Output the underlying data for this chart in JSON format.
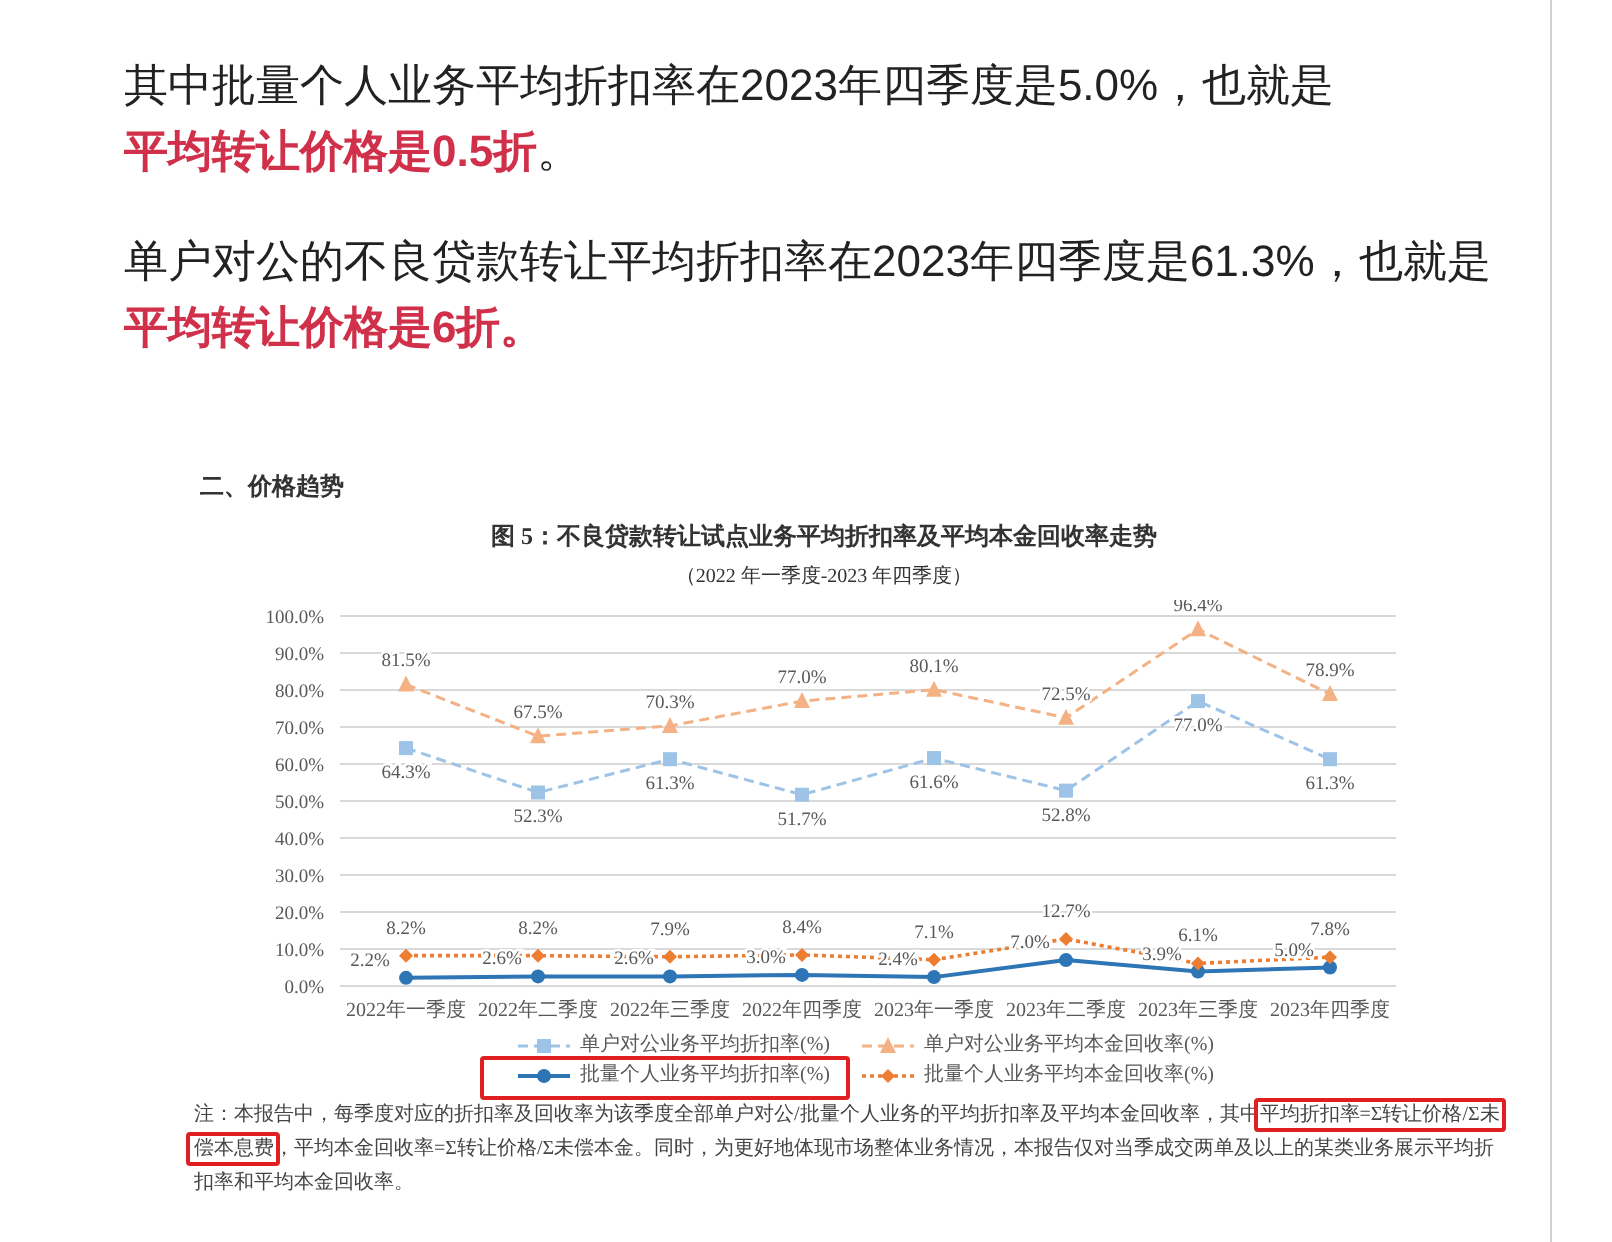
{
  "chart_data": {
    "type": "line",
    "title": "图 5：不良贷款转让试点业务平均折扣率及平均本金回收率走势",
    "subtitle": "（2022 年一季度-2023 年四季度）",
    "annotations": [
      "其中批量个人业务平均折扣率在2023年四季度是5.0%，也就是",
      "平均转让价格是0.5折",
      "。",
      "单户对公的不良贷款转让平均折扣率在2023年四季度是61.3%，也就是",
      "平均转让价格是6折。",
      "二、价格趋势",
      "注：本报告中，每季度对应的折扣率及回收率为该季度全部单户对公/批量个人业务的平均折扣率及平均本金回收率，其中",
      "平均折扣率=Σ转让价格/Σ未",
      "偿本息费",
      "，平均本金回收率=Σ转让价格/Σ未偿本金。同时，为更好地体现市场整体业务情况，本报告仅对当季成交两单及以上的某类业务展示平均折",
      "扣率和平均本金回收率。"
    ],
    "categories": [
      "2022年一季度",
      "2022年二季度",
      "2022年三季度",
      "2022年四季度",
      "2023年一季度",
      "2023年二季度",
      "2023年三季度",
      "2023年四季度"
    ],
    "series": [
      {
        "name": "单户对公业务平均折扣率(%)",
        "color": "#9dc3e6",
        "marker": "square",
        "line_style": "dashed",
        "values": [
          64.3,
          52.3,
          61.3,
          51.7,
          61.6,
          52.8,
          77.0,
          61.3
        ],
        "value_labels": [
          "64.3%",
          "52.3%",
          "61.3%",
          "51.7%",
          "61.6%",
          "52.8%",
          "77.0%",
          "61.3%"
        ]
      },
      {
        "name": "单户对公业务平均本金回收率(%)",
        "color": "#f4b183",
        "marker": "triangle",
        "line_style": "dashed",
        "values": [
          81.5,
          67.5,
          70.3,
          77.0,
          80.1,
          72.5,
          96.4,
          78.9
        ],
        "value_labels": [
          "81.5%",
          "67.5%",
          "70.3%",
          "77.0%",
          "80.1%",
          "72.5%",
          "96.4%",
          "78.9%"
        ]
      },
      {
        "name": "批量个人业务平均折扣率(%)",
        "color": "#2e75b6",
        "marker": "circle",
        "line_style": "solid",
        "values": [
          2.2,
          2.6,
          2.6,
          3.0,
          2.4,
          7.0,
          3.9,
          5.0
        ],
        "value_labels": [
          "2.2%",
          "2.6%",
          "2.6%",
          "3.0%",
          "2.4%",
          "7.0%",
          "3.9%",
          "5.0%"
        ]
      },
      {
        "name": "批量个人业务平均本金回收率(%)",
        "color": "#ed7d31",
        "marker": "diamond",
        "line_style": "dotted",
        "values": [
          8.2,
          8.2,
          7.9,
          8.4,
          7.1,
          12.7,
          6.1,
          7.8
        ],
        "value_labels": [
          "8.2%",
          "8.2%",
          "7.9%",
          "8.4%",
          "7.1%",
          "12.7%",
          "6.1%",
          "7.8%"
        ]
      }
    ],
    "ylim": [
      0,
      100
    ],
    "yticks": [
      {
        "value": 0,
        "label": "0.0%"
      },
      {
        "value": 10,
        "label": "10.0%"
      },
      {
        "value": 20,
        "label": "20.0%"
      },
      {
        "value": 30,
        "label": "30.0%"
      },
      {
        "value": 40,
        "label": "40.0%"
      },
      {
        "value": 50,
        "label": "50.0%"
      },
      {
        "value": 60,
        "label": "60.0%"
      },
      {
        "value": 70,
        "label": "70.0%"
      },
      {
        "value": 80,
        "label": "80.0%"
      },
      {
        "value": 90,
        "label": "90.0%"
      },
      {
        "value": 100,
        "label": "100.0%"
      }
    ],
    "grid": "y",
    "legend": "bottom"
  }
}
